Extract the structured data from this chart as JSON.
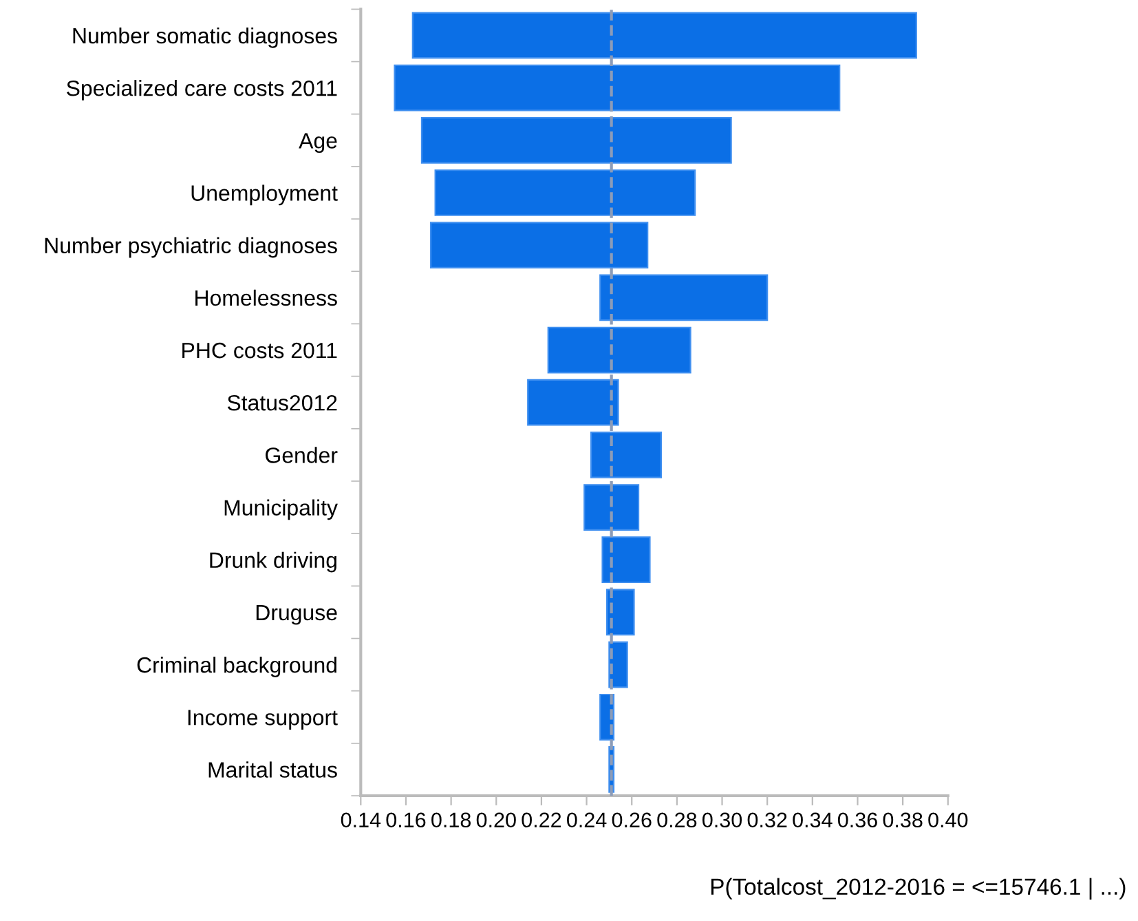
{
  "chart_data": {
    "type": "bar",
    "orientation": "horizontal",
    "categories": [
      "Number somatic diagnoses",
      "Specialized care costs 2011",
      "Age",
      "Unemployment",
      "Number psychiatric diagnoses",
      "Homelessness",
      "PHC costs 2011",
      "Status2012",
      "Gender",
      "Municipality",
      "Drunk driving",
      "Druguse",
      "Criminal background",
      "Income support",
      "Marital status"
    ],
    "base": [
      0.163,
      0.155,
      0.167,
      0.173,
      0.171,
      0.246,
      0.223,
      0.214,
      0.242,
      0.239,
      0.247,
      0.249,
      0.25,
      0.246,
      0.25
    ],
    "values": [
      0.223,
      0.197,
      0.137,
      0.115,
      0.096,
      0.074,
      0.063,
      0.04,
      0.031,
      0.024,
      0.021,
      0.012,
      0.008,
      0.006,
      0.002
    ],
    "color": "#0b6fe6",
    "xlim": [
      0.14,
      0.4
    ],
    "xticks": [
      0.14,
      0.16,
      0.18,
      {
        "value": 0.2,
        "label": "0.20"
      },
      0.22,
      0.24,
      0.26,
      0.28,
      {
        "value": 0.3,
        "label": "0.30"
      },
      0.32,
      0.34,
      0.36,
      0.38,
      {
        "value": 0.4,
        "label": "0.40"
      }
    ],
    "xlabel": "P(Totalcost_2012-2016 = <=15746.1 | ...)",
    "ref_lines": [
      {
        "axis": "x",
        "value": 0.251,
        "color": "#8c9cb8",
        "line_style": "dashed"
      }
    ],
    "grid": false,
    "legend": false
  }
}
